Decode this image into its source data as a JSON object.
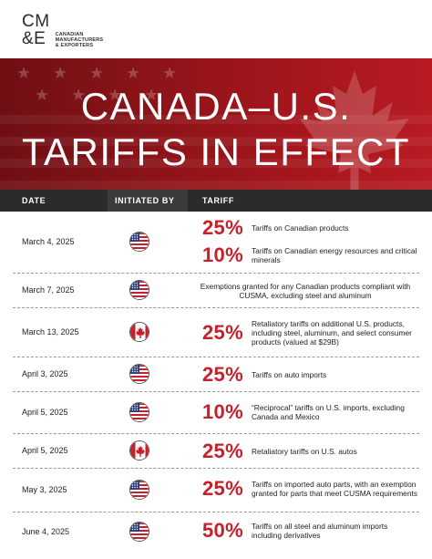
{
  "brand": {
    "logo_line1": "CM",
    "logo_line2": "&E",
    "org_line1": "CANADIAN",
    "org_line2": "MANUFACTURERS",
    "org_line3": "& EXPORTERS"
  },
  "hero": {
    "title_line1": "CANADA–U.S.",
    "title_line2": "TARIFFS IN EFFECT"
  },
  "table": {
    "headers": {
      "date": "DATE",
      "initiated_by": "INITIATED BY",
      "tariff": "TARIFF"
    },
    "rows": [
      {
        "date": "March 4, 2025",
        "initiated_by": "us-flag-icon",
        "items": [
          {
            "pct": "25%",
            "text": "Tariffs on Canadian products"
          },
          {
            "pct": "10%",
            "text": "Tariffs on Canadian energy resources and critical minerals"
          }
        ]
      },
      {
        "date": "March 7, 2025",
        "initiated_by": "us-flag-icon",
        "items": [
          {
            "pct": "",
            "text": "Exemptions granted for any Canadian products compliant with CUSMA, excluding steel and aluminum"
          }
        ]
      },
      {
        "date": "March 13, 2025",
        "initiated_by": "canada-flag-icon",
        "items": [
          {
            "pct": "25%",
            "text": "Retaliatory tariffs on additional U.S. products, including steel, aluminum, and select consumer products (valued at $29B)"
          }
        ]
      },
      {
        "date": "April 3, 2025",
        "initiated_by": "us-flag-icon",
        "items": [
          {
            "pct": "25%",
            "text": "Tariffs on auto imports"
          }
        ]
      },
      {
        "date": "April 5, 2025",
        "initiated_by": "us-flag-icon",
        "items": [
          {
            "pct": "10%",
            "text": "“Reciprocal” tariffs on U.S. imports, excluding Canada and Mexico"
          }
        ]
      },
      {
        "date": "April 5, 2025",
        "initiated_by": "canada-flag-icon",
        "items": [
          {
            "pct": "25%",
            "text": "Retaliatory tariffs on U.S. autos"
          }
        ]
      },
      {
        "date": "May 3, 2025",
        "initiated_by": "us-flag-icon",
        "items": [
          {
            "pct": "25%",
            "text": "Tariffs on imported auto parts, with an exemption granted for parts that meet CUSMA requirements"
          }
        ]
      },
      {
        "date": "June 4, 2025",
        "initiated_by": "us-flag-icon",
        "items": [
          {
            "pct": "50%",
            "text": "Tariffs on all steel and aluminum imports including derivatives"
          }
        ]
      }
    ]
  },
  "colors": {
    "accent_red": "#c8202a",
    "header_dark": "#2b2b2b",
    "hero_red": "#a3161c"
  }
}
